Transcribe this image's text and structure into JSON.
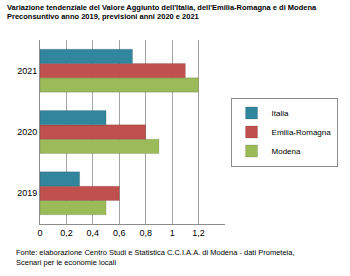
{
  "chart_data": {
    "type": "bar",
    "title": "Variazione tendenziale del Valore Aggiunto dell'Italia, dell'Emilia-Romagna e di Modena",
    "subtitle": "Preconsuntivo anno 2019, previsioni anni 2020 e 2021",
    "orientation": "horizontal",
    "categories": [
      "2019",
      "2020",
      "2021"
    ],
    "series": [
      {
        "name": "Italia",
        "color": "#31859c",
        "values": [
          0.3,
          0.5,
          0.7
        ]
      },
      {
        "name": "Emilia-Romagna",
        "color": "#c0504d",
        "values": [
          0.6,
          0.8,
          1.1
        ]
      },
      {
        "name": "Modena",
        "color": "#9bbb59",
        "values": [
          0.5,
          0.9,
          1.2
        ]
      }
    ],
    "xlim": [
      0,
      1.4
    ],
    "xticks": [
      0,
      {
        "value": 0.2,
        "label": "0,2"
      },
      {
        "value": 0.4,
        "label": "0,4"
      },
      {
        "value": 0.6,
        "label": "0,6"
      },
      {
        "value": 0.8,
        "label": "0,8"
      },
      1,
      {
        "value": 1.2,
        "label": "1,2"
      }
    ],
    "grid": true,
    "legend": "right",
    "annotations": [
      "Fonte: elaborazione Centro Studi e Statistica C.C.I.A.A. di Modena - dati Prometeia,",
      "Scenari per le economie locali"
    ]
  }
}
